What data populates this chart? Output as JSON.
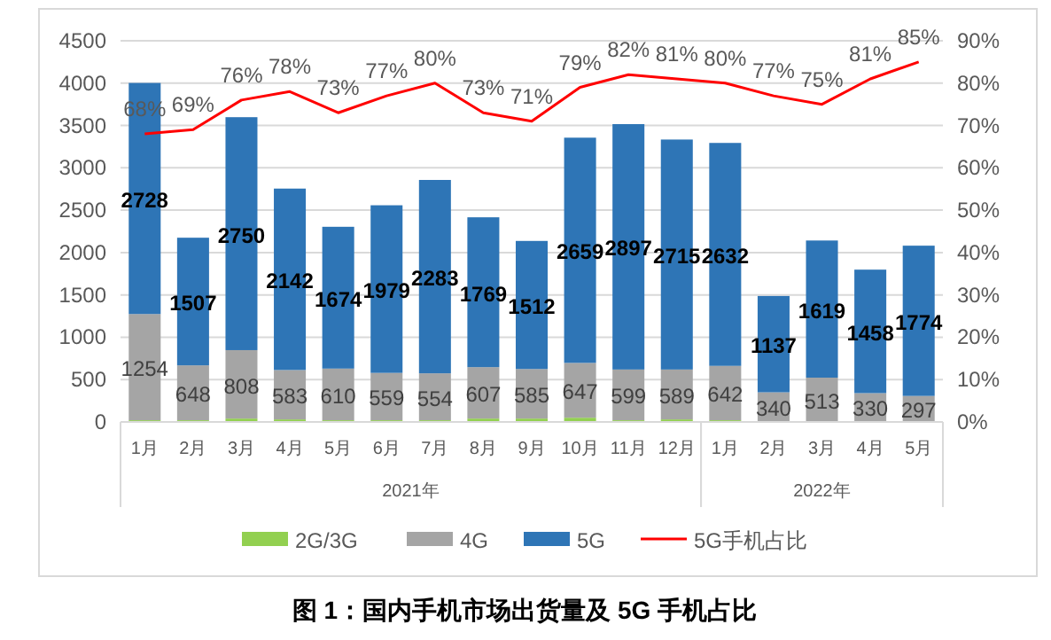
{
  "chart_data": {
    "type": "bar",
    "title": "图 1：国内手机市场出货量及 5G 手机占比",
    "categories": [
      "1月",
      "2月",
      "3月",
      "4月",
      "5月",
      "6月",
      "7月",
      "8月",
      "9月",
      "10月",
      "11月",
      "12月",
      "1月",
      "2月",
      "3月",
      "4月",
      "5月"
    ],
    "annotations": [
      "2021年",
      "2022年"
    ],
    "stacked": true,
    "grid": "y",
    "legend": "bottom",
    "ylim": [
      0,
      4500
    ],
    "yticks": [
      0,
      500,
      1000,
      1500,
      2000,
      2500,
      3000,
      3500,
      4000,
      4500
    ],
    "y2lim": [
      0,
      90
    ],
    "y2ticks": [
      {
        "value": 0,
        "label": "0%"
      },
      {
        "value": 10,
        "label": "10%"
      },
      {
        "value": 20,
        "label": "20%"
      },
      {
        "value": 30,
        "label": "30%"
      },
      {
        "value": 40,
        "label": "40%"
      },
      {
        "value": 50,
        "label": "50%"
      },
      {
        "value": 60,
        "label": "60%"
      },
      {
        "value": 70,
        "label": "70%"
      },
      {
        "value": 80,
        "label": "80%"
      },
      {
        "value": 90,
        "label": "90%"
      }
    ],
    "series": [
      {
        "name": "2G/3G",
        "color": "#92d050",
        "values": [
          20,
          20,
          40,
          30,
          20,
          20,
          20,
          40,
          40,
          50,
          20,
          30,
          20,
          10,
          10,
          10,
          10
        ]
      },
      {
        "name": "4G",
        "color": "#a5a5a5",
        "values": [
          1254,
          648,
          808,
          583,
          610,
          559,
          554,
          607,
          585,
          647,
          599,
          589,
          642,
          340,
          513,
          330,
          297
        ],
        "value_labels": [
          "1254",
          "648",
          "808",
          "583",
          "610",
          "559",
          "554",
          "607",
          "585",
          "647",
          "599",
          "589",
          "642",
          "340",
          "513",
          "330",
          "297"
        ]
      },
      {
        "name": "5G",
        "color": "#2e75b6",
        "values": [
          2728,
          1507,
          2750,
          2142,
          1674,
          1979,
          2283,
          1769,
          1512,
          2659,
          2897,
          2715,
          2632,
          1137,
          1619,
          1458,
          1774
        ],
        "value_labels": [
          "2728",
          "1507",
          "2750",
          "2142",
          "1674",
          "1979",
          "2283",
          "1769",
          "1512",
          "2659",
          "2897",
          "2715",
          "2632",
          "1137",
          "1619",
          "1458",
          "1774"
        ]
      },
      {
        "name": "5G手机占比",
        "type": "line",
        "axis": "y2",
        "color": "#ff0000",
        "values": [
          68,
          69,
          76,
          78,
          73,
          77,
          80,
          73,
          71,
          79,
          82,
          81,
          80,
          77,
          75,
          81,
          85
        ],
        "value_labels": [
          "68%",
          "69%",
          "76%",
          "78%",
          "73%",
          "77%",
          "80%",
          "73%",
          "71%",
          "79%",
          "82%",
          "81%",
          "80%",
          "77%",
          "75%",
          "81%",
          "85%"
        ]
      }
    ]
  }
}
